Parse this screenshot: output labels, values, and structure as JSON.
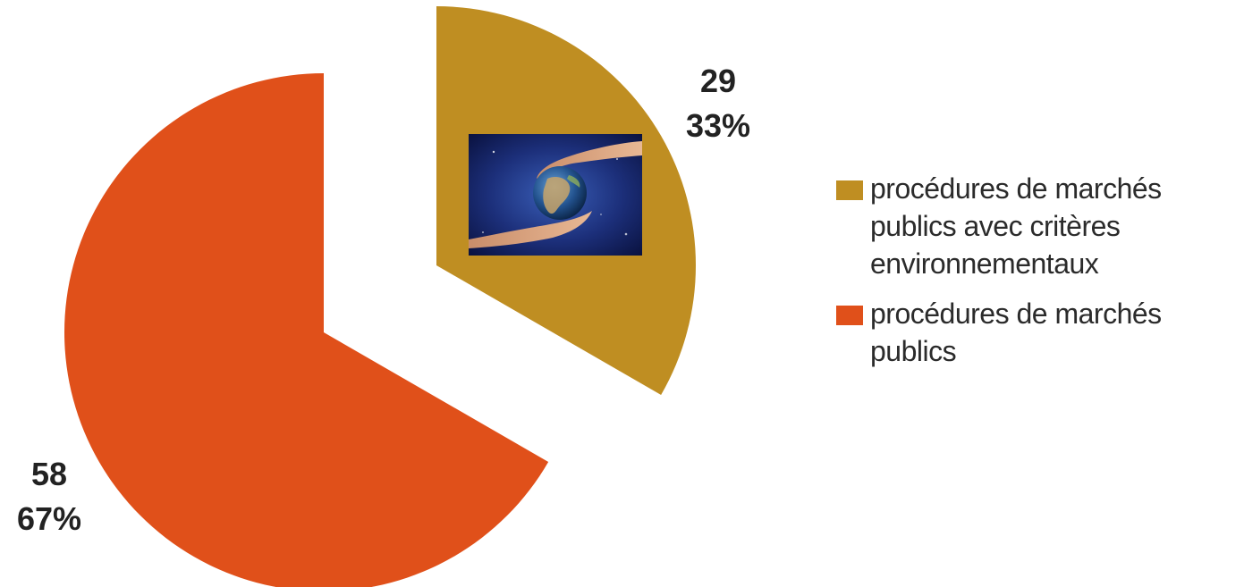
{
  "chart_data": {
    "type": "pie",
    "title": "",
    "start_angle_deg": 0,
    "direction": "clockwise",
    "exploded": true,
    "slices": [
      {
        "name": "procédures de marchés publics avec critères environnementaux",
        "value": 29,
        "percent": "33%",
        "color": "#BF8E22",
        "has_image": true,
        "image_icon": "earth-in-hands-icon"
      },
      {
        "name": "procédures de marchés publics",
        "value": 58,
        "percent": "67%",
        "color": "#E0501A",
        "has_image": false
      }
    ],
    "legend_position": "right"
  }
}
